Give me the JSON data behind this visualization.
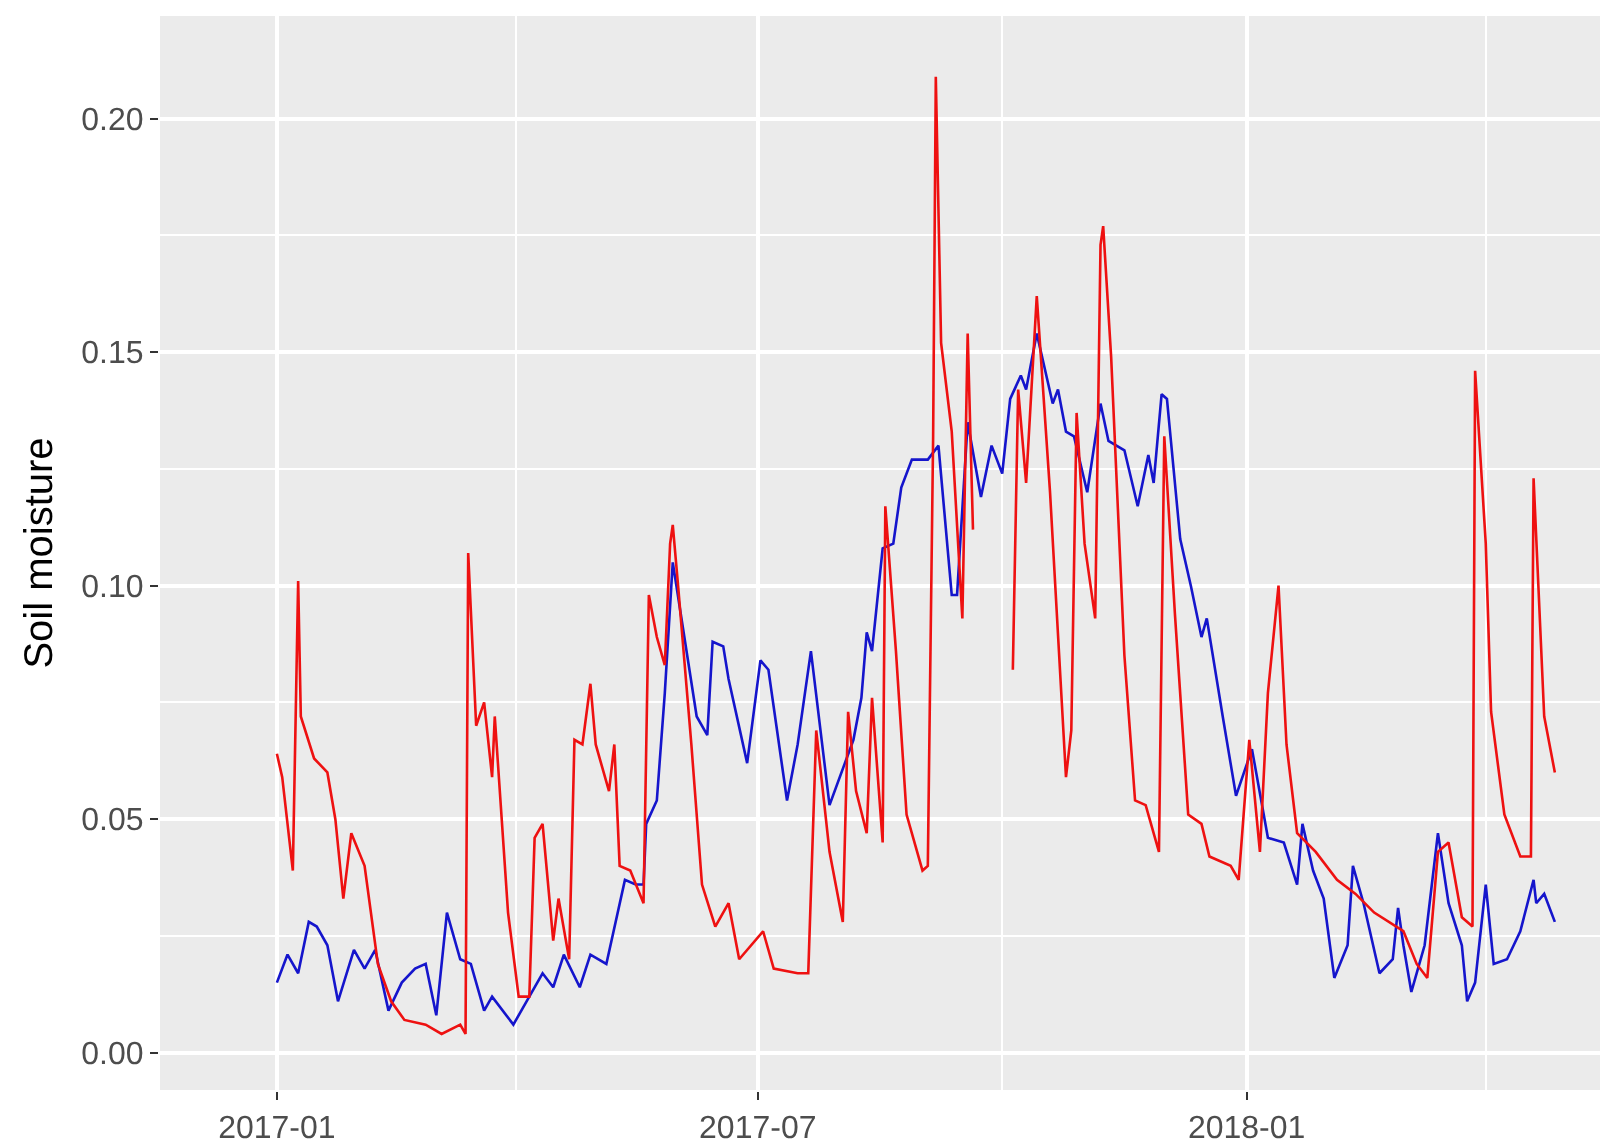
{
  "chart_data": {
    "type": "line",
    "ylabel": "Soil moisture",
    "grid": true,
    "marker": "none",
    "line_style": "solid",
    "xlim": [
      "2016-11-18",
      "2018-05-14"
    ],
    "xticks": [
      {
        "value": "2017-01-01",
        "label": "2017-01"
      },
      {
        "value": "2017-04-01",
        "label": null
      },
      {
        "value": "2017-07-01",
        "label": "2017-07"
      },
      {
        "value": "2017-10-01",
        "label": null
      },
      {
        "value": "2018-01-01",
        "label": "2018-01"
      },
      {
        "value": "2018-04-01",
        "label": null
      }
    ],
    "ylim": [
      -0.008,
      0.222
    ],
    "yticks": [
      {
        "value": 0,
        "label": "0.00"
      },
      {
        "value": 0.025,
        "label": null
      },
      {
        "value": 0.05,
        "label": "0.05"
      },
      {
        "value": 0.075,
        "label": null
      },
      {
        "value": 0.1,
        "label": "0.10"
      },
      {
        "value": 0.125,
        "label": null
      },
      {
        "value": 0.15,
        "label": "0.15"
      },
      {
        "value": 0.175,
        "label": null
      },
      {
        "value": 0.2,
        "label": "0.20"
      }
    ],
    "series": [
      {
        "color": "#1515cc",
        "x": [
          "2017-01-01",
          "2017-01-05",
          "2017-01-09",
          "2017-01-13",
          "2017-01-16",
          "2017-01-20",
          "2017-01-24",
          "2017-01-30",
          "2017-02-03",
          "2017-02-07",
          "2017-02-12",
          "2017-02-17",
          "2017-02-22",
          "2017-02-26",
          "2017-03-02",
          "2017-03-06",
          "2017-03-11",
          "2017-03-15",
          "2017-03-20",
          "2017-03-23",
          "2017-03-31",
          "2017-04-06",
          "2017-04-11",
          "2017-04-15",
          "2017-04-19",
          "2017-04-25",
          "2017-04-29",
          "2017-05-05",
          "2017-05-12",
          "2017-05-16",
          "2017-05-19",
          "2017-05-20",
          "2017-05-24",
          "2017-05-27",
          "2017-05-30",
          "2017-06-02",
          "2017-06-08",
          "2017-06-12",
          "2017-06-14",
          "2017-06-18",
          "2017-06-20",
          "2017-06-27",
          "2017-07-02",
          "2017-07-05",
          "2017-07-08",
          "2017-07-12",
          "2017-07-16",
          "2017-07-21",
          "2017-07-28",
          "2017-08-06",
          "2017-08-09",
          "2017-08-11",
          "2017-08-13",
          "2017-08-17",
          "2017-08-21",
          "2017-08-24",
          "2017-08-28",
          "2017-08-30",
          "2017-09-03",
          "2017-09-07",
          "2017-09-12",
          "2017-09-14",
          "2017-09-18",
          "2017-09-23",
          "2017-09-27",
          "2017-10-01",
          "2017-10-04",
          "2017-10-08",
          "2017-10-10",
          "2017-10-14",
          "2017-10-20",
          "2017-10-22",
          "2017-10-25",
          "2017-10-28",
          "2017-11-02",
          "2017-11-07",
          "2017-11-10",
          "2017-11-16",
          "2017-11-21",
          "2017-11-25",
          "2017-11-27",
          "2017-11-30",
          "2017-12-02",
          "2017-12-07",
          "2017-12-11",
          "2017-12-15",
          "2017-12-17",
          "2017-12-23",
          "2017-12-28",
          "2018-01-03",
          "2018-01-09",
          "2018-01-15",
          "2018-01-20",
          "2018-01-22",
          "2018-01-26",
          "2018-01-30",
          "2018-02-03",
          "2018-02-08",
          "2018-02-10",
          "2018-02-14",
          "2018-02-20",
          "2018-02-25",
          "2018-02-27",
          "2018-03-01",
          "2018-03-04",
          "2018-03-09",
          "2018-03-14",
          "2018-03-18",
          "2018-03-23",
          "2018-03-25",
          "2018-03-28",
          "2018-04-01",
          "2018-04-04",
          "2018-04-09",
          "2018-04-14",
          "2018-04-19",
          "2018-04-20",
          "2018-04-23",
          "2018-04-27"
        ],
        "values": [
          0.015,
          0.021,
          0.017,
          0.028,
          0.027,
          0.023,
          0.011,
          0.022,
          0.018,
          0.022,
          0.009,
          0.015,
          0.018,
          0.019,
          0.008,
          0.03,
          0.02,
          0.019,
          0.009,
          0.012,
          0.006,
          0.012,
          0.017,
          0.014,
          0.021,
          0.014,
          0.021,
          0.019,
          0.037,
          0.036,
          0.036,
          0.049,
          0.054,
          0.077,
          0.105,
          0.094,
          0.072,
          0.068,
          0.088,
          0.087,
          0.08,
          0.062,
          0.084,
          0.082,
          0.07,
          0.054,
          0.066,
          0.086,
          0.053,
          0.067,
          0.076,
          0.09,
          0.086,
          0.108,
          0.109,
          0.121,
          0.127,
          0.127,
          0.127,
          0.13,
          0.098,
          0.098,
          0.135,
          0.119,
          0.13,
          0.124,
          0.14,
          0.145,
          0.142,
          0.154,
          0.139,
          0.142,
          0.133,
          0.132,
          0.12,
          0.139,
          0.131,
          0.129,
          0.117,
          0.128,
          0.122,
          0.141,
          0.14,
          0.11,
          0.1,
          0.089,
          0.093,
          0.072,
          0.055,
          0.065,
          0.046,
          0.045,
          0.036,
          0.049,
          0.039,
          0.033,
          0.016,
          0.023,
          0.04,
          0.032,
          0.017,
          0.02,
          0.031,
          0.023,
          0.013,
          0.023,
          0.047,
          0.032,
          0.023,
          0.011,
          0.015,
          0.036,
          0.019,
          0.02,
          0.026,
          0.037,
          0.032,
          0.034,
          0.028
        ]
      },
      {
        "color": "#ee1111",
        "x": [
          "2017-01-01",
          "2017-01-03",
          "2017-01-07",
          "2017-01-09",
          "2017-01-10",
          "2017-01-15",
          "2017-01-20",
          "2017-01-23",
          "2017-01-26",
          "2017-01-29",
          "2017-02-03",
          "2017-02-08",
          "2017-02-13",
          "2017-02-18",
          "2017-02-26",
          "2017-03-04",
          "2017-03-11",
          "2017-03-13",
          "2017-03-14",
          "2017-03-17",
          "2017-03-20",
          "2017-03-23",
          "2017-03-24",
          "2017-03-29",
          "2017-04-02",
          "2017-04-06",
          "2017-04-08",
          "2017-04-11",
          "2017-04-15",
          "2017-04-17",
          "2017-04-21",
          "2017-04-23",
          "2017-04-26",
          "2017-04-29",
          "2017-05-01",
          "2017-05-06",
          "2017-05-08",
          "2017-05-10",
          "2017-05-14",
          "2017-05-19",
          "2017-05-21",
          "2017-05-24",
          "2017-05-27",
          "2017-05-29",
          "2017-05-30",
          "2017-06-01",
          "2017-06-06",
          "2017-06-10",
          "2017-06-15",
          "2017-06-20",
          "2017-06-24",
          "2017-07-03",
          "2017-07-07",
          "2017-07-16",
          "2017-07-20",
          "2017-07-23",
          "2017-07-28",
          "2017-08-02",
          "2017-08-04",
          "2017-08-07",
          "2017-08-11",
          "2017-08-13",
          "2017-08-17",
          "2017-08-18",
          "2017-08-22",
          "2017-08-26",
          "2017-09-01",
          "2017-09-03",
          "2017-09-05",
          "2017-09-06",
          "2017-09-08",
          "2017-09-12",
          "2017-09-16",
          "2017-09-18",
          "2017-09-20",
          "2017-09-27",
          "2017-10-05",
          "2017-10-07",
          "2017-10-10",
          "2017-10-14",
          "2017-10-19",
          "2017-10-25",
          "2017-10-27",
          "2017-10-29",
          "2017-11-01",
          "2017-11-05",
          "2017-11-07",
          "2017-11-08",
          "2017-11-11",
          "2017-11-16",
          "2017-11-20",
          "2017-11-24",
          "2017-11-29",
          "2017-12-01",
          "2017-12-05",
          "2017-12-10",
          "2017-12-15",
          "2017-12-18",
          "2017-12-26",
          "2017-12-29",
          "2018-01-02",
          "2018-01-06",
          "2018-01-09",
          "2018-01-13",
          "2018-01-16",
          "2018-01-20",
          "2018-01-27",
          "2018-02-04",
          "2018-02-11",
          "2018-02-18",
          "2018-03-01",
          "2018-03-06",
          "2018-03-10",
          "2018-03-14",
          "2018-03-18",
          "2018-03-23",
          "2018-03-27",
          "2018-03-28",
          "2018-04-01",
          "2018-04-03",
          "2018-04-08",
          "2018-04-14",
          "2018-04-18",
          "2018-04-19",
          "2018-04-23",
          "2018-04-27"
        ],
        "values": [
          0.064,
          0.059,
          0.039,
          0.101,
          0.072,
          0.063,
          0.06,
          0.05,
          0.033,
          0.047,
          0.04,
          0.019,
          0.011,
          0.007,
          0.006,
          0.004,
          0.006,
          0.004,
          0.107,
          0.07,
          0.075,
          0.059,
          0.072,
          0.03,
          0.012,
          0.012,
          0.046,
          0.049,
          0.024,
          0.033,
          0.02,
          0.067,
          0.066,
          0.079,
          0.066,
          0.056,
          0.066,
          0.04,
          0.039,
          0.032,
          0.098,
          0.089,
          0.083,
          0.109,
          0.113,
          0.1,
          0.066,
          0.036,
          0.027,
          0.032,
          0.02,
          0.026,
          0.018,
          0.017,
          0.017,
          0.069,
          0.043,
          0.028,
          0.073,
          0.056,
          0.047,
          0.076,
          0.045,
          0.117,
          0.086,
          0.051,
          0.039,
          0.04,
          0.132,
          0.209,
          0.152,
          0.133,
          0.093,
          0.154,
          0.112,
          null,
          0.082,
          0.142,
          0.122,
          0.162,
          0.12,
          0.059,
          0.069,
          0.137,
          0.109,
          0.093,
          0.173,
          0.177,
          0.149,
          0.085,
          0.054,
          0.053,
          0.043,
          0.132,
          0.094,
          0.051,
          0.049,
          0.042,
          0.04,
          0.037,
          0.067,
          0.043,
          0.077,
          0.1,
          0.066,
          0.047,
          0.043,
          0.037,
          0.034,
          0.03,
          0.026,
          0.019,
          0.016,
          0.043,
          0.045,
          0.029,
          0.027,
          0.146,
          0.109,
          0.073,
          0.051,
          0.042,
          0.042,
          0.123,
          0.072,
          0.06
        ]
      }
    ]
  }
}
